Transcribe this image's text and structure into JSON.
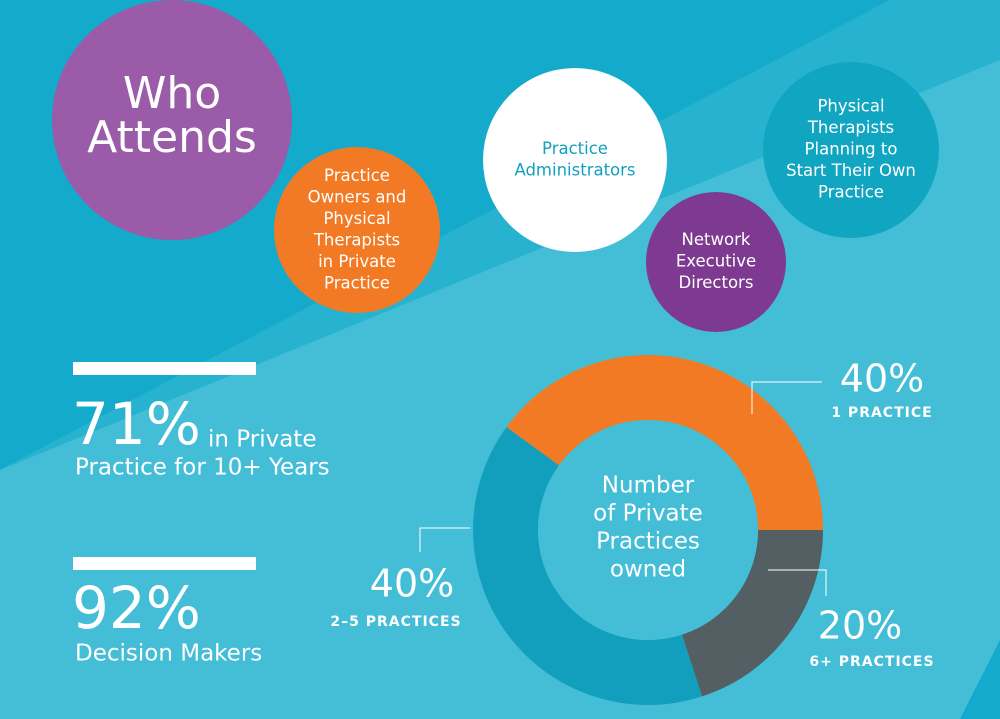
{
  "title": [
    "Who",
    "Attends"
  ],
  "audiences": [
    [
      "Practice",
      "Owners and",
      "Physical",
      "Therapists",
      "in Private",
      "Practice"
    ],
    [
      "Practice",
      "Administrators"
    ],
    [
      "Network",
      "Executive",
      "Directors"
    ],
    [
      "Physical",
      "Therapists",
      "Planning to",
      "Start Their Own",
      "Practice"
    ]
  ],
  "stats": [
    {
      "value": "71%",
      "text": [
        "in Private",
        "Practice for 10+ Years"
      ]
    },
    {
      "value": "92%",
      "text": [
        "Decision Makers"
      ]
    }
  ],
  "chart_data": {
    "type": "donut",
    "title": [
      "Number",
      "of Private",
      "Practices",
      "owned"
    ],
    "categories": [
      "1 PRACTICE",
      "2–5 PRACTICES",
      "6+ PRACTICES"
    ],
    "values": [
      40,
      40,
      20
    ],
    "value_labels": [
      "40%",
      "40%",
      "20%"
    ],
    "colors": [
      "#f37a24",
      "#129fbe",
      "#535f62"
    ]
  }
}
